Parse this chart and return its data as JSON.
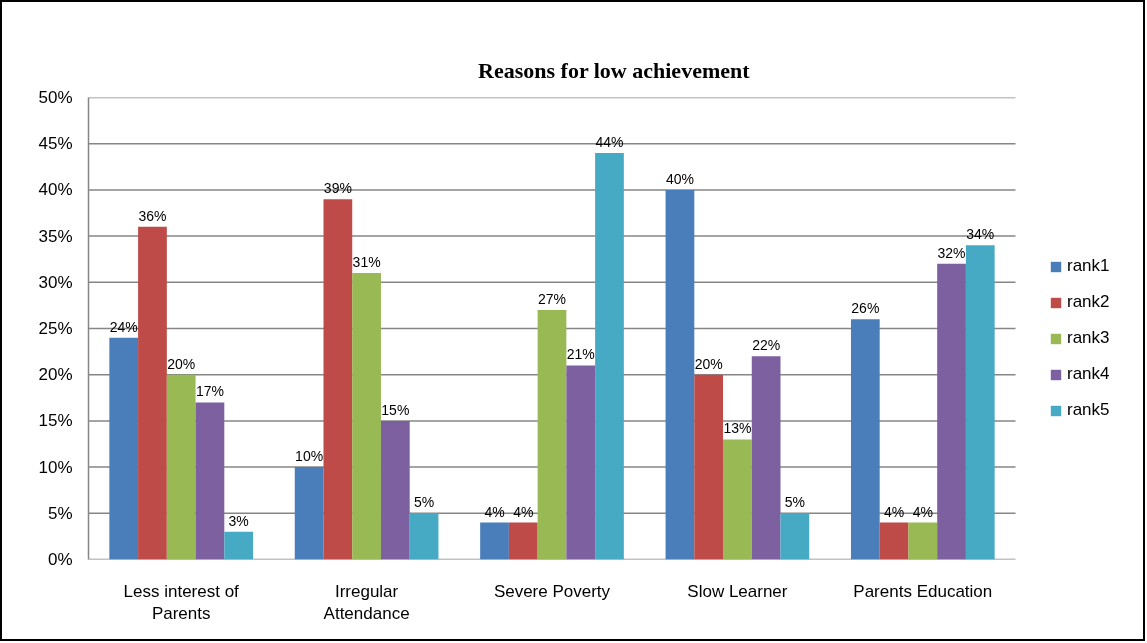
{
  "chart_data": {
    "type": "bar",
    "title": "Reasons for low achievement",
    "categories": [
      "Less interest of Parents",
      "Irregular Attendance",
      "Severe Poverty",
      "Slow Learner",
      "Parents Education"
    ],
    "series": [
      {
        "name": "rank1",
        "color": "#4a7ebb",
        "values": [
          24,
          10,
          4,
          40,
          26
        ],
        "value_labels": [
          "24%",
          "10%",
          "4%",
          "40%",
          "26%"
        ]
      },
      {
        "name": "rank2",
        "color": "#be4b48",
        "values": [
          36,
          39,
          4,
          20,
          4
        ],
        "value_labels": [
          "36%",
          "39%",
          "4%",
          "20%",
          "4%"
        ]
      },
      {
        "name": "rank3",
        "color": "#98b954",
        "values": [
          20,
          31,
          27,
          13,
          4
        ],
        "value_labels": [
          "20%",
          "31%",
          "27%",
          "13%",
          "4%"
        ]
      },
      {
        "name": "rank4",
        "color": "#7d60a0",
        "values": [
          17,
          15,
          21,
          22,
          32
        ],
        "value_labels": [
          "17%",
          "15%",
          "21%",
          "22%",
          "32%"
        ]
      },
      {
        "name": "rank5",
        "color": "#46aac5",
        "values": [
          3,
          5,
          44,
          5,
          34
        ],
        "value_labels": [
          "3%",
          "5%",
          "44%",
          "5%",
          "34%"
        ]
      }
    ],
    "ylim": [
      0,
      50
    ],
    "yticks": [
      {
        "value": 0,
        "label": "0%"
      },
      {
        "value": 5,
        "label": "5%"
      },
      {
        "value": 10,
        "label": "10%"
      },
      {
        "value": 15,
        "label": "15%"
      },
      {
        "value": 20,
        "label": "20%"
      },
      {
        "value": 25,
        "label": "25%"
      },
      {
        "value": 30,
        "label": "30%"
      },
      {
        "value": 35,
        "label": "35%"
      },
      {
        "value": 40,
        "label": "40%"
      },
      {
        "value": 45,
        "label": "45%"
      },
      {
        "value": 50,
        "label": "50%"
      }
    ],
    "grid": "y",
    "legend": "right"
  }
}
